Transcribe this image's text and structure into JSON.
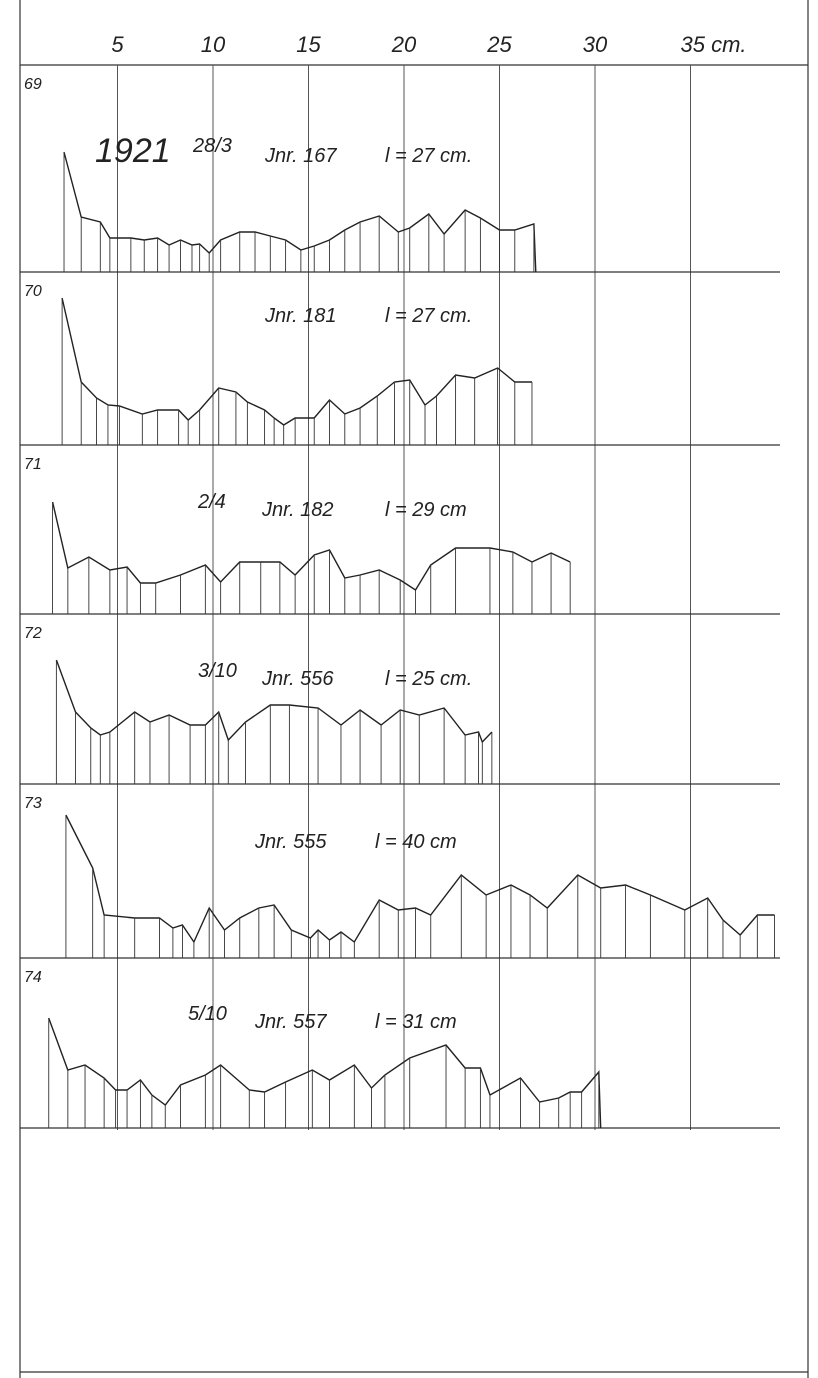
{
  "figure": {
    "scale": {
      "ticks": [
        5,
        10,
        15,
        20,
        25,
        30,
        {
          "value": 35,
          "label": "35 cm."
        }
      ]
    },
    "panels": [
      {
        "label": "69",
        "notes": [
          "1921",
          "28/3",
          "Jnr. 167",
          "l = 27 cm."
        ],
        "x": [
          2.2,
          3.1,
          4.1,
          4.6,
          5.7,
          6.4,
          7.1,
          7.7,
          8.3,
          8.9,
          9.3,
          9.8,
          10.4,
          11.4,
          12.2,
          13.0,
          13.8,
          14.6,
          15.3,
          16.1,
          16.9,
          17.7,
          18.7,
          19.7,
          20.3,
          21.3,
          22.1,
          23.2,
          24.0,
          25.0,
          25.8,
          26.8,
          26.9
        ],
        "values": [
          12.0,
          5.5,
          5.0,
          3.4,
          3.4,
          3.2,
          3.4,
          2.7,
          3.2,
          2.7,
          2.8,
          1.9,
          3.2,
          4.0,
          4.0,
          3.6,
          3.2,
          2.2,
          2.6,
          3.2,
          4.2,
          5.0,
          5.6,
          4.0,
          4.4,
          5.8,
          3.8,
          6.2,
          5.4,
          4.2,
          4.2,
          4.8,
          0
        ]
      },
      {
        "label": "70",
        "notes": [
          "Jnr. 181",
          "l = 27 cm."
        ],
        "x": [
          2.1,
          3.1,
          3.9,
          4.5,
          5.1,
          6.3,
          7.1,
          8.2,
          8.7,
          9.3,
          10.3,
          11.2,
          11.8,
          12.7,
          13.2,
          13.7,
          14.3,
          15.3,
          16.1,
          16.9,
          17.7,
          18.6,
          19.5,
          20.3,
          21.1,
          21.7,
          22.7,
          23.7,
          24.9,
          25.8,
          26.7
        ],
        "values": [
          14.7,
          6.3,
          4.7,
          4.0,
          3.9,
          3.1,
          3.5,
          3.5,
          2.5,
          3.5,
          5.7,
          5.3,
          4.3,
          3.5,
          2.7,
          2.0,
          2.7,
          2.7,
          4.5,
          3.1,
          3.7,
          4.9,
          6.3,
          6.5,
          4.0,
          4.9,
          7.0,
          6.7,
          7.7,
          6.3,
          6.3
        ]
      },
      {
        "label": "71",
        "notes": [
          "2/4",
          "Jnr. 182",
          "l = 29 cm"
        ],
        "x": [
          1.6,
          2.4,
          3.5,
          4.6,
          5.5,
          6.2,
          7.0,
          8.3,
          9.6,
          10.4,
          11.4,
          12.5,
          13.5,
          14.3,
          15.3,
          16.1,
          16.9,
          17.7,
          18.7,
          19.8,
          20.6,
          21.4,
          22.7,
          24.5,
          25.7,
          26.7,
          27.7,
          28.7
        ],
        "values": [
          11.2,
          4.6,
          5.7,
          4.4,
          4.7,
          3.1,
          3.1,
          3.9,
          4.9,
          3.2,
          5.2,
          5.2,
          5.2,
          3.9,
          5.9,
          6.4,
          3.6,
          3.9,
          4.4,
          3.4,
          2.4,
          4.9,
          6.6,
          6.6,
          6.2,
          5.2,
          6.1,
          5.2
        ]
      },
      {
        "label": "72",
        "notes": [
          "3/10",
          "Jnr. 556",
          "l = 25 cm."
        ],
        "x": [
          1.8,
          2.8,
          3.6,
          4.1,
          4.6,
          5.9,
          6.7,
          7.7,
          8.8,
          9.6,
          10.3,
          10.8,
          11.7,
          13.0,
          14.0,
          15.5,
          16.7,
          17.7,
          18.8,
          19.8,
          20.8,
          22.1,
          23.2,
          23.9,
          24.1,
          24.6
        ],
        "values": [
          12.4,
          7.2,
          5.6,
          4.9,
          5.2,
          7.2,
          6.2,
          6.9,
          5.9,
          5.9,
          7.2,
          4.4,
          6.2,
          7.9,
          7.9,
          7.6,
          5.9,
          7.4,
          5.9,
          7.4,
          6.9,
          7.6,
          4.9,
          5.2,
          4.2,
          5.2
        ]
      },
      {
        "label": "73",
        "notes": [
          "Jnr. 555",
          "l = 40 cm"
        ],
        "x": [
          2.3,
          3.7,
          4.3,
          5.9,
          7.2,
          7.9,
          8.4,
          9.0,
          9.8,
          10.6,
          11.4,
          12.4,
          13.2,
          14.1,
          15.1,
          15.5,
          16.1,
          16.7,
          17.4,
          18.7,
          19.7,
          20.6,
          21.4,
          23.0,
          24.3,
          25.6,
          26.6,
          27.5,
          29.1,
          30.3,
          31.6,
          32.9,
          34.7,
          35.9,
          36.7,
          37.6,
          38.5,
          39.4
        ],
        "values": [
          14.3,
          9.0,
          4.3,
          4.0,
          4.0,
          3.0,
          3.3,
          1.6,
          5.0,
          2.8,
          4.0,
          5.0,
          5.3,
          2.8,
          2.0,
          2.8,
          1.8,
          2.6,
          1.6,
          5.8,
          4.8,
          5.0,
          4.3,
          8.3,
          6.3,
          7.3,
          6.3,
          5.0,
          8.3,
          7.0,
          7.3,
          6.3,
          4.8,
          6.0,
          3.8,
          2.3,
          4.3,
          4.3
        ]
      },
      {
        "label": "74",
        "notes": [
          "5/10",
          "Jnr. 557",
          "l = 31 cm"
        ],
        "x": [
          1.4,
          2.4,
          3.3,
          4.3,
          4.9,
          5.5,
          6.2,
          6.8,
          7.5,
          8.3,
          9.6,
          10.4,
          11.9,
          12.7,
          13.8,
          15.2,
          16.1,
          17.4,
          18.3,
          19.0,
          20.3,
          22.2,
          23.2,
          24.0,
          24.5,
          26.1,
          27.1,
          28.1,
          28.7,
          29.3,
          30.2,
          30.3
        ],
        "values": [
          11.0,
          5.8,
          6.3,
          5.0,
          3.8,
          3.8,
          4.8,
          3.3,
          2.3,
          4.3,
          5.3,
          6.3,
          3.8,
          3.6,
          4.6,
          5.8,
          4.8,
          6.3,
          4.0,
          5.3,
          7.0,
          8.3,
          6.0,
          6.0,
          3.3,
          5.0,
          2.6,
          3.0,
          3.6,
          3.6,
          5.6,
          0
        ]
      }
    ]
  }
}
